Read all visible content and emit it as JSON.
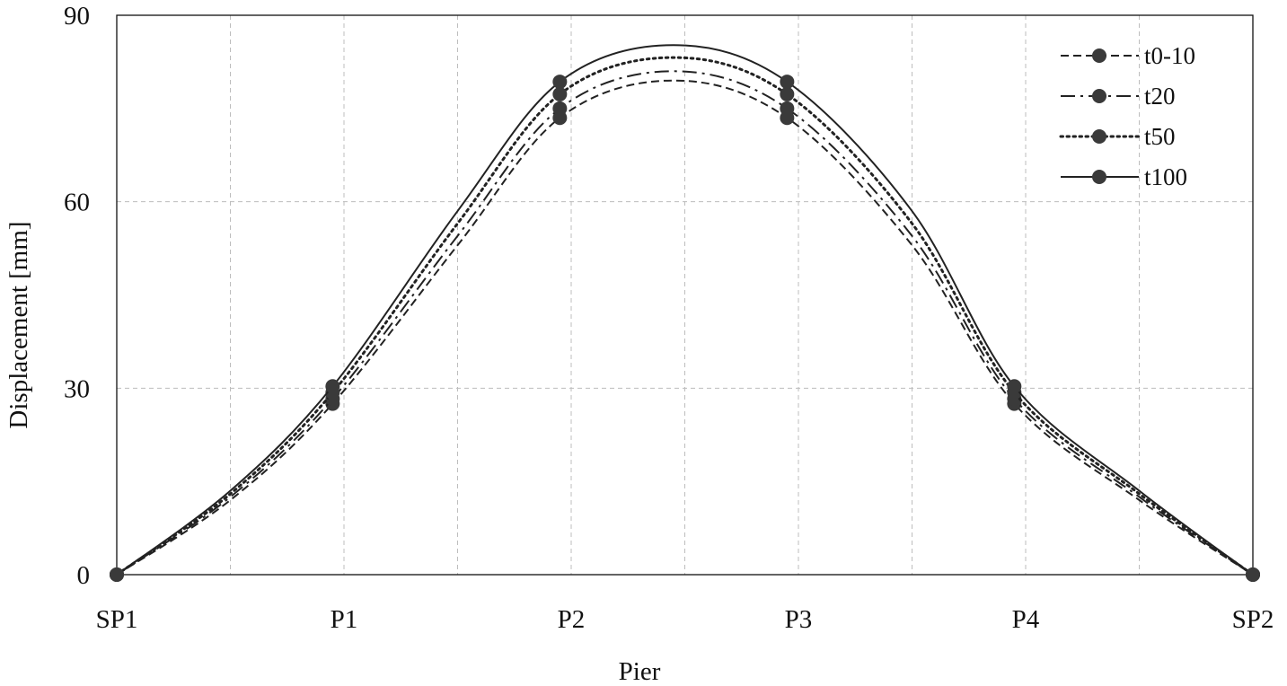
{
  "chart_data": {
    "type": "line",
    "xlabel": "Pier",
    "ylabel": "Displacement [mm]",
    "categories": [
      "SP1",
      "P1",
      "P2",
      "P3",
      "P4",
      "SP2"
    ],
    "ylim": [
      0,
      90
    ],
    "yticks": [
      0,
      30,
      60,
      90
    ],
    "grid": true,
    "legend_position": "top-right",
    "series": [
      {
        "name": "t0-10",
        "style": "dashed",
        "marker_x": [
          0,
          0.95,
          1.95,
          2.95,
          3.95,
          5
        ],
        "marker_y": [
          0,
          27.5,
          73.5,
          73.5,
          27.5,
          0
        ],
        "curve_x": [
          0,
          0.5,
          0.95,
          1.5,
          1.95,
          2.45,
          2.95,
          3.5,
          3.95,
          4.5,
          5
        ],
        "curve_y": [
          0,
          12,
          27.5,
          53,
          73.5,
          79.5,
          73.5,
          53,
          27.5,
          12,
          0
        ]
      },
      {
        "name": "t20",
        "style": "dash-dot",
        "marker_x": [
          0,
          0.95,
          1.95,
          2.95,
          3.95,
          5
        ],
        "marker_y": [
          0,
          28.3,
          75,
          75,
          28.3,
          0
        ],
        "curve_x": [
          0,
          0.5,
          0.95,
          1.5,
          1.95,
          2.45,
          2.95,
          3.5,
          3.95,
          4.5,
          5
        ],
        "curve_y": [
          0,
          12.5,
          28.3,
          54.5,
          75,
          81,
          75,
          54.5,
          28.3,
          12.5,
          0
        ]
      },
      {
        "name": "t50",
        "style": "dotted",
        "marker_x": [
          0,
          0.95,
          1.95,
          2.95,
          3.95,
          5
        ],
        "marker_y": [
          0,
          29.3,
          77.3,
          77.3,
          29.3,
          0
        ],
        "curve_x": [
          0,
          0.5,
          0.95,
          1.5,
          1.95,
          2.45,
          2.95,
          3.5,
          3.95,
          4.5,
          5
        ],
        "curve_y": [
          0,
          13,
          29.3,
          56.5,
          77.3,
          83.2,
          77.3,
          56.5,
          29.3,
          13,
          0
        ]
      },
      {
        "name": "t100",
        "style": "solid",
        "marker_x": [
          0,
          0.95,
          1.95,
          2.95,
          3.95,
          5
        ],
        "marker_y": [
          0,
          30.3,
          79.3,
          79.3,
          30.3,
          0
        ],
        "curve_x": [
          0,
          0.5,
          0.95,
          1.5,
          1.95,
          2.45,
          2.95,
          3.5,
          3.95,
          4.5,
          5
        ],
        "curve_y": [
          0,
          13.5,
          30.3,
          58.5,
          79.3,
          85.2,
          79.3,
          58.5,
          30.3,
          13.5,
          0
        ]
      }
    ],
    "colors": {
      "line": "#222222",
      "marker": "#3a3a3a",
      "grid": "#bdbdbd",
      "frame": "#111111"
    }
  }
}
